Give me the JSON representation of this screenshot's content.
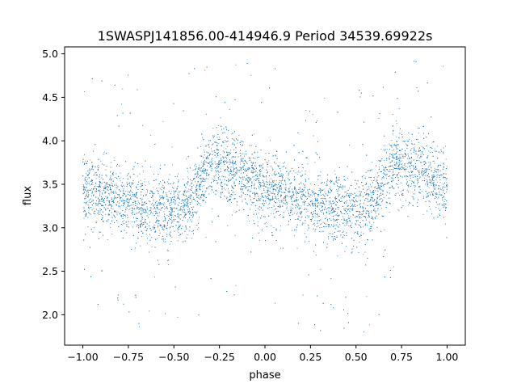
{
  "chart_data": {
    "type": "scatter",
    "title": "1SWASPJ141856.00-414946.9 Period 34539.69922s",
    "xlabel": "phase",
    "ylabel": "flux",
    "xlim": [
      -1.1,
      1.1
    ],
    "ylim": [
      1.65,
      5.08
    ],
    "xticks": [
      -1.0,
      -0.75,
      -0.5,
      -0.25,
      0.0,
      0.25,
      0.5,
      0.75,
      1.0
    ],
    "xtick_labels": [
      "−1.00",
      "−0.75",
      "−0.50",
      "−0.25",
      "0.00",
      "0.25",
      "0.50",
      "0.75",
      "1.00"
    ],
    "yticks": [
      2.0,
      2.5,
      3.0,
      3.5,
      4.0,
      4.5,
      5.0
    ],
    "ytick_labels": [
      "2.0",
      "2.5",
      "3.0",
      "3.5",
      "4.0",
      "4.5",
      "5.0"
    ],
    "grid": false,
    "legend": "none",
    "marker_color": "#1f77b4",
    "phase_range": [
      -1.0,
      1.0
    ],
    "light_curve": {
      "phase": [
        0.0,
        0.1,
        0.2,
        0.3,
        0.4,
        0.5,
        0.6,
        0.7,
        0.75,
        0.8,
        0.9,
        1.0
      ],
      "flux_median": [
        3.45,
        3.38,
        3.32,
        3.26,
        3.2,
        3.18,
        3.3,
        3.75,
        3.72,
        3.7,
        3.58,
        3.45
      ],
      "flux_spread": 0.2
    }
  }
}
